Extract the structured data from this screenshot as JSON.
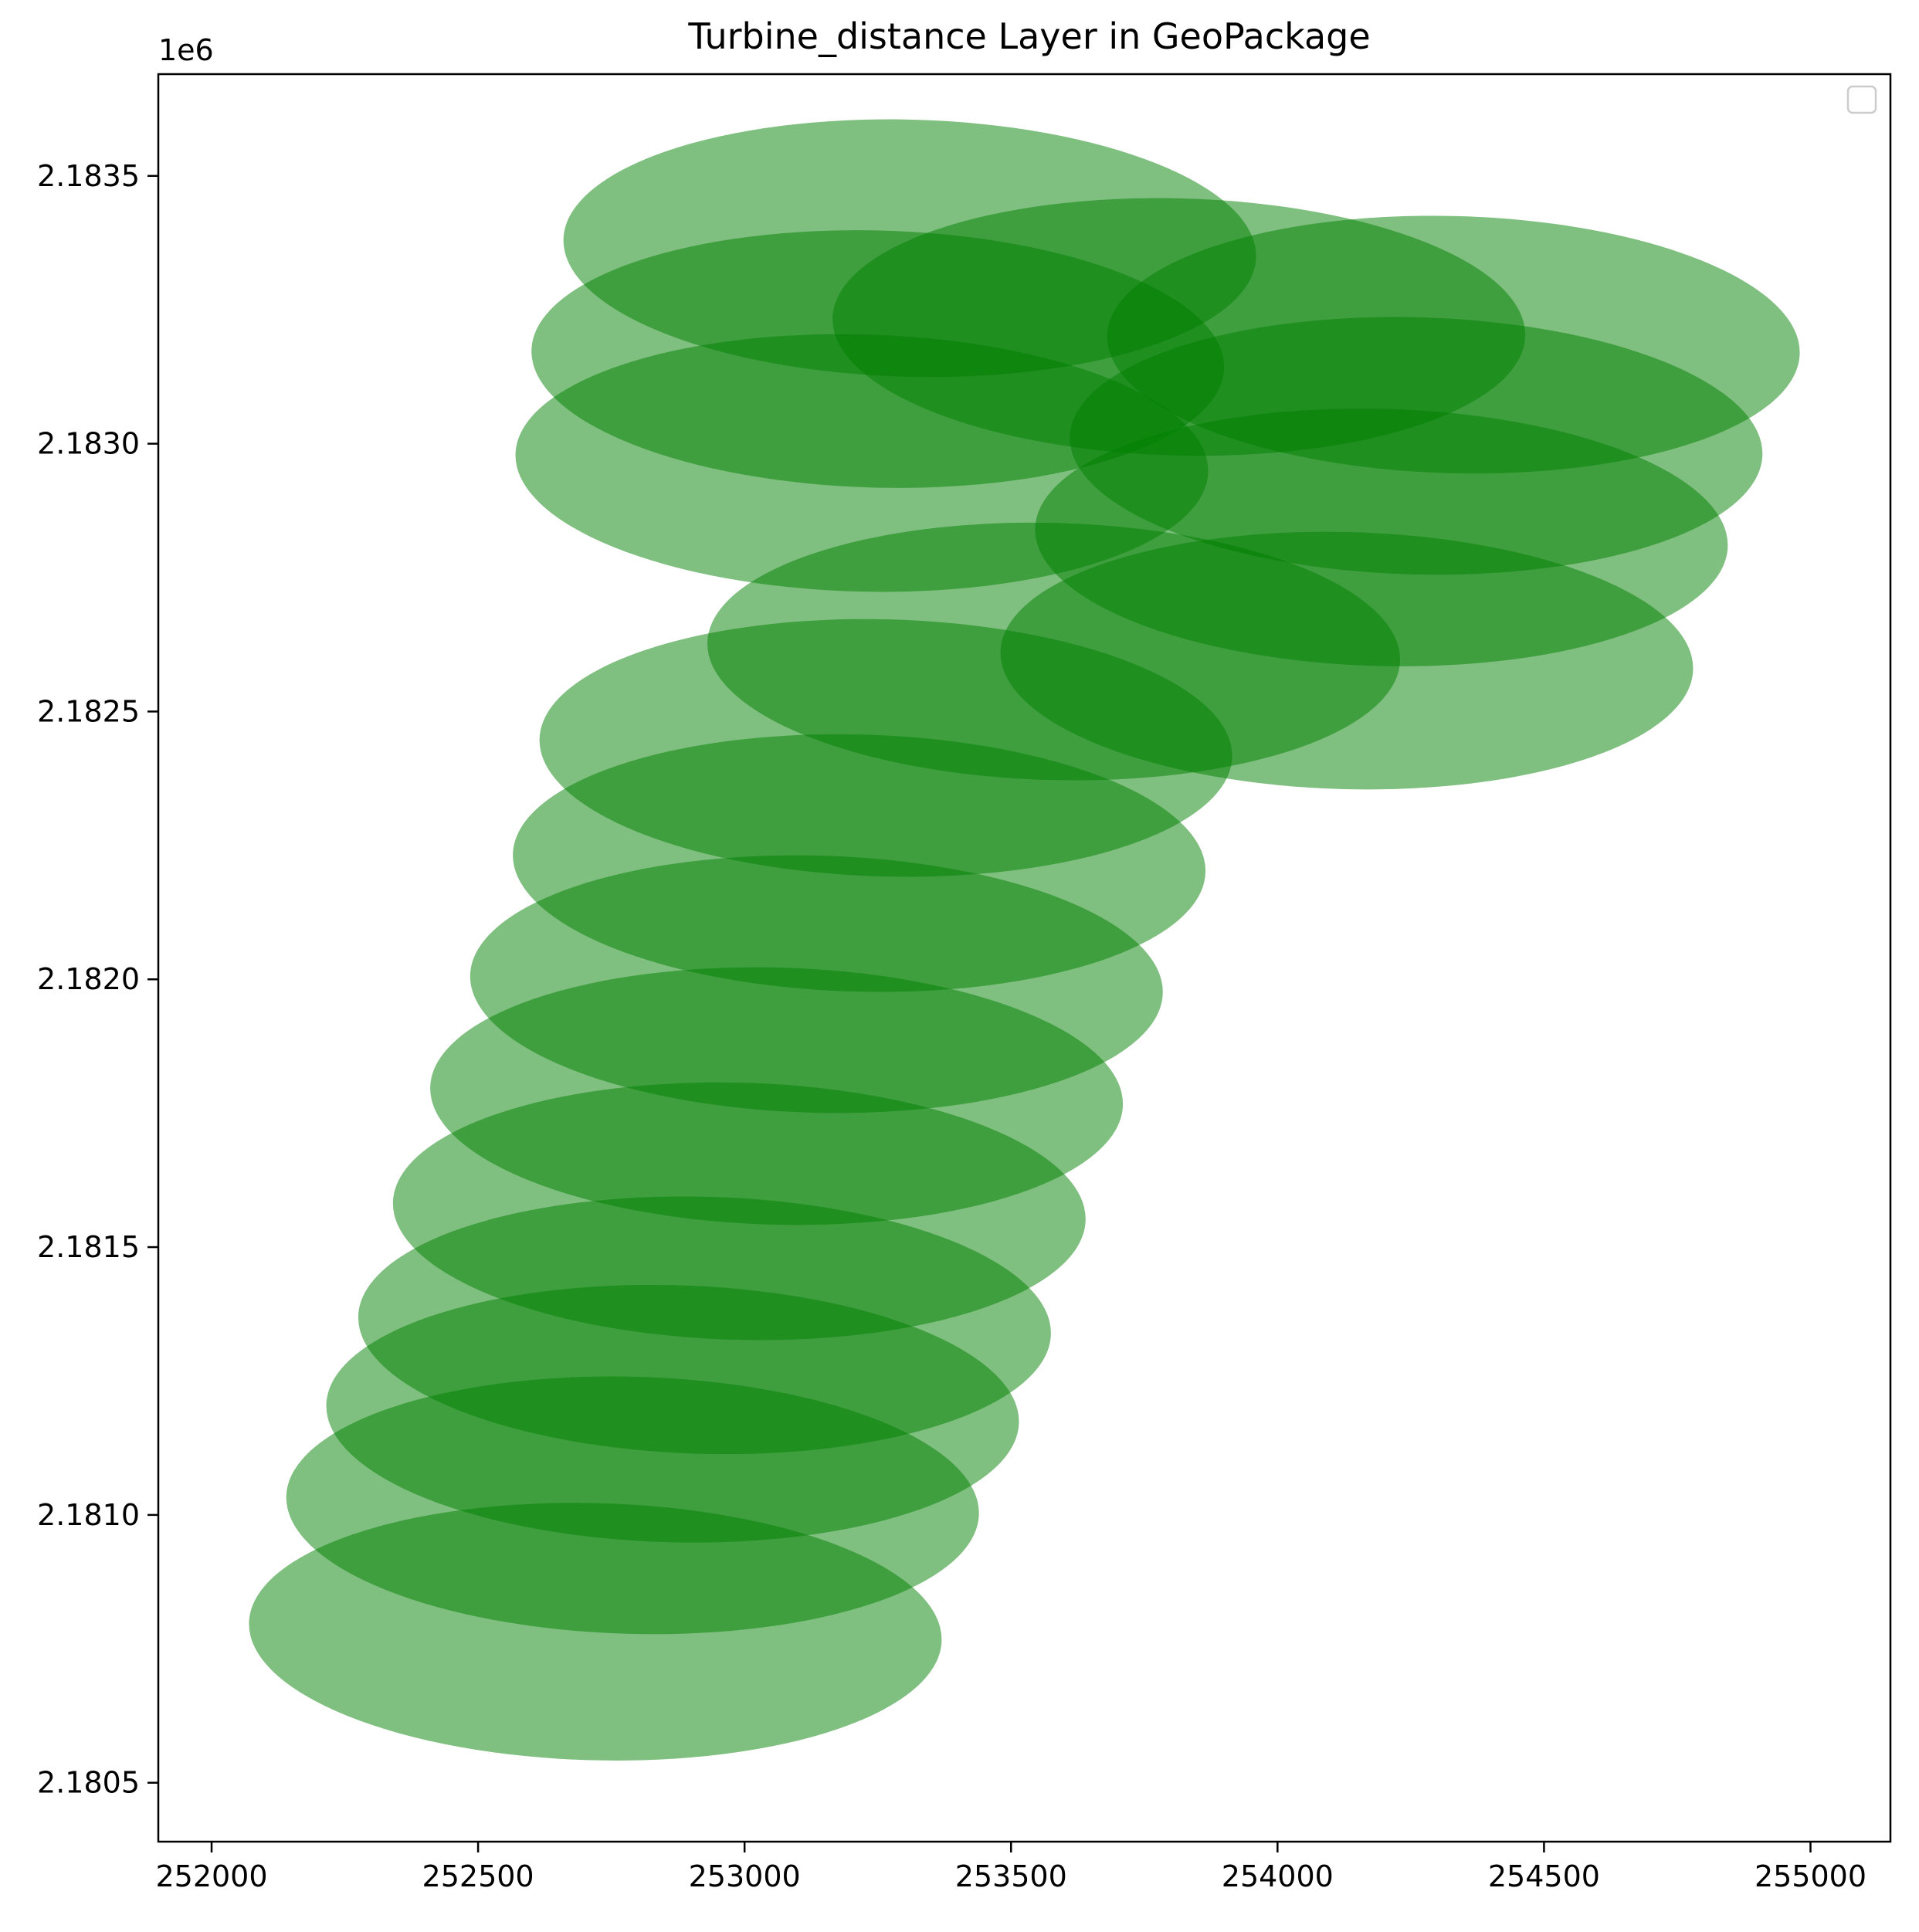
{
  "chart_data": {
    "type": "scatter",
    "title": "Turbine_distance Layer in GeoPackage",
    "xlabel": "",
    "ylabel": "",
    "y_offset_label": "1e6",
    "xlim": [
      251900,
      255150
    ],
    "ylim": [
      2180390,
      2183690
    ],
    "x_ticks": [
      252000,
      252500,
      253000,
      253500,
      254000,
      254500,
      255000
    ],
    "x_tick_labels": [
      "252000",
      "252500",
      "253000",
      "253500",
      "254000",
      "254500",
      "255000"
    ],
    "y_ticks": [
      2180500,
      2181000,
      2181500,
      2182000,
      2182500,
      2183000,
      2183500
    ],
    "y_tick_labels": [
      "2.1805",
      "2.1810",
      "2.1815",
      "2.1820",
      "2.1825",
      "2.1830",
      "2.1835"
    ],
    "legend": {
      "placement": "top-right",
      "entries": []
    },
    "grid": false,
    "shape": "circle",
    "fill_color": "#008000",
    "fill_opacity": 0.5,
    "buffer_radius_x": 650,
    "buffer_radius_y": 240,
    "series": [
      {
        "x": [
          252720,
          252790,
          252865,
          252925,
          252990,
          253060,
          253135,
          253215,
          253265,
          253580,
          254130,
          254195,
          254260,
          254330,
          253220,
          253250,
          253310,
          253815
        ],
        "y": [
          2180782,
          2181018,
          2181189,
          2181354,
          2181567,
          2181782,
          2181991,
          2182217,
          2182432,
          2182612,
          2182595,
          2182825,
          2182996,
          2183185,
          2182964,
          2183158,
          2183365,
          2183218
        ]
      }
    ]
  }
}
